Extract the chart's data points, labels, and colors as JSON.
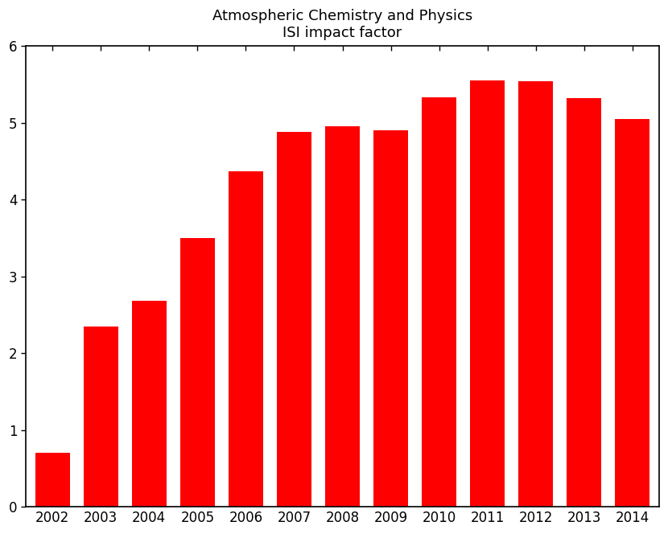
{
  "title_line1": "Atmospheric Chemistry and Physics",
  "title_line2": "ISI impact factor",
  "years": [
    2002,
    2003,
    2004,
    2005,
    2006,
    2007,
    2008,
    2009,
    2010,
    2011,
    2012,
    2013,
    2014
  ],
  "values": [
    0.7,
    2.35,
    2.68,
    3.5,
    4.37,
    4.88,
    4.95,
    4.9,
    5.33,
    5.55,
    5.54,
    5.32,
    5.05
  ],
  "bar_color": "#ff0000",
  "ylim": [
    0,
    6
  ],
  "yticks": [
    0,
    1,
    2,
    3,
    4,
    5,
    6
  ],
  "title_fontsize": 13,
  "tick_fontsize": 12,
  "bar_width": 0.72
}
